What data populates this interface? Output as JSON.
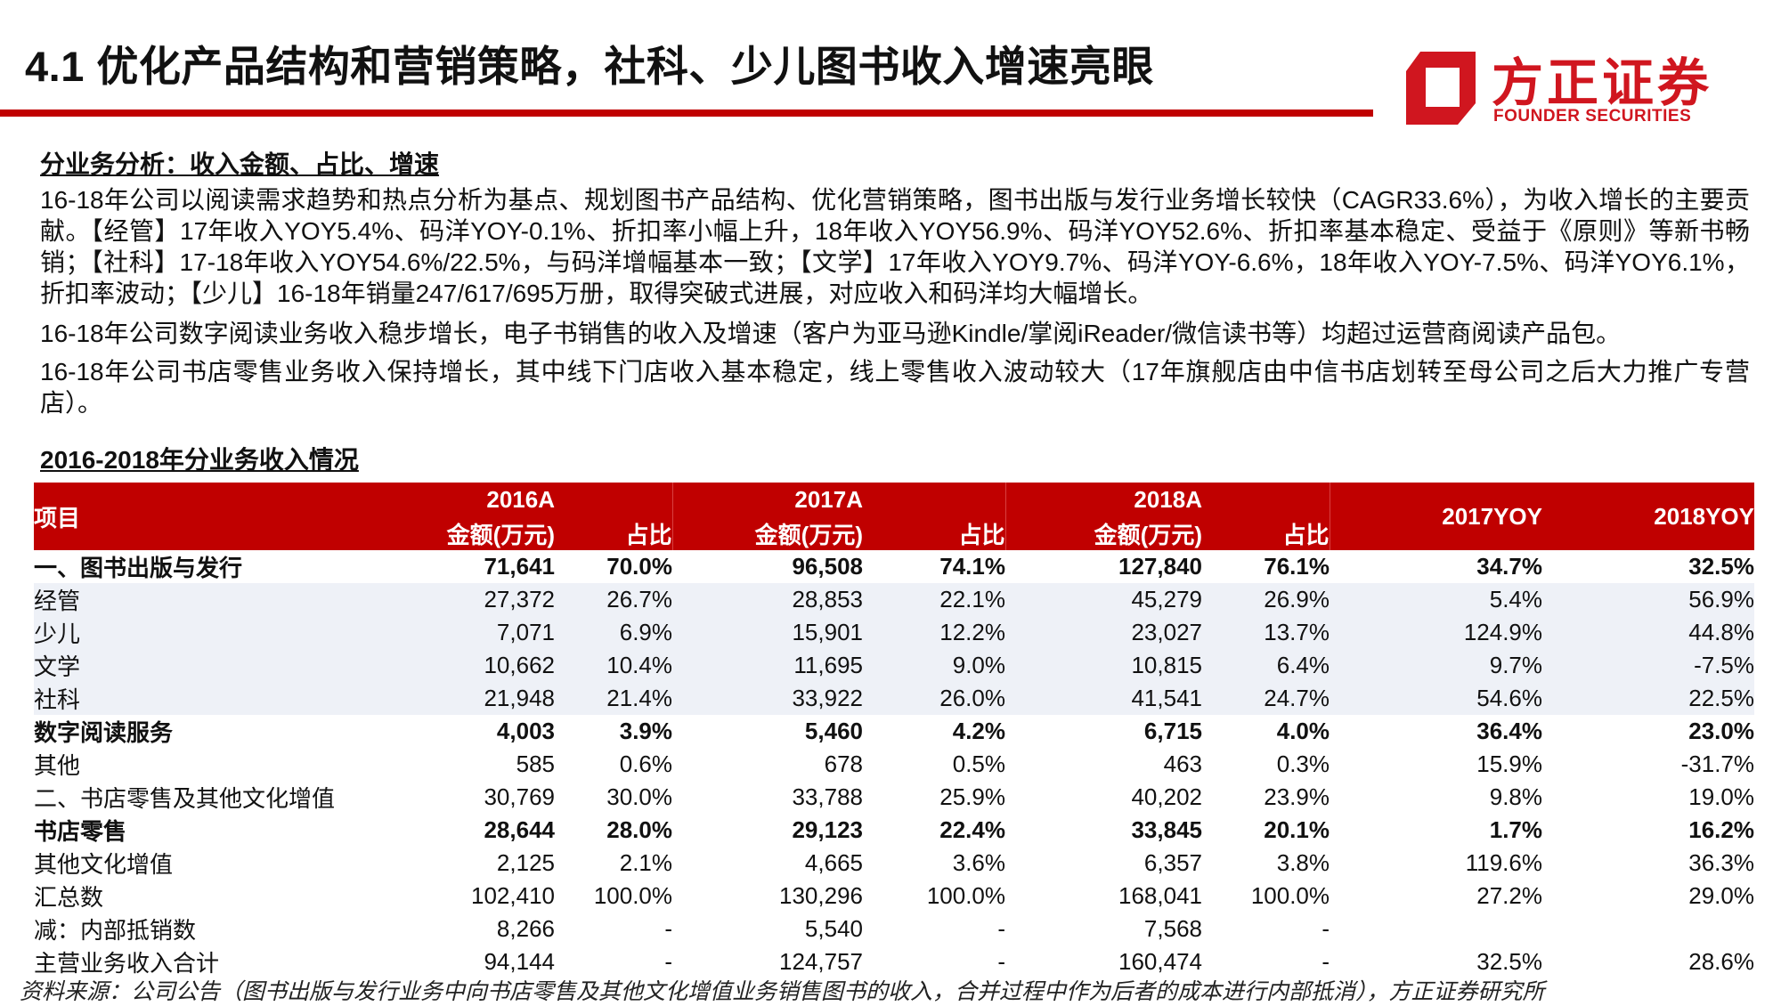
{
  "header": {
    "title": "4.1 优化产品结构和营销策略，社科、少儿图书收入增速亮眼",
    "accent_color": "#c00000"
  },
  "logo": {
    "cn": "方正证券",
    "en": "FOUNDER SECURITIES",
    "color": "#d0161f"
  },
  "section1": {
    "heading": "分业务分析：收入金额、占比、增速",
    "paragraphs": [
      "16-18年公司以阅读需求趋势和热点分析为基点、规划图书产品结构、优化营销策略，图书出版与发行业务增长较快（CAGR33.6%），为收入增长的主要贡献。【经管】17年收入YOY5.4%、码洋YOY-0.1%、折扣率小幅上升，18年收入YOY56.9%、码洋YOY52.6%、折扣率基本稳定、受益于《原则》等新书畅销；【社科】17-18年收入YOY54.6%/22.5%，与码洋增幅基本一致；【文学】17年收入YOY9.7%、码洋YOY-6.6%，18年收入YOY-7.5%、码洋YOY6.1%，折扣率波动；【少儿】16-18年销量247/617/695万册，取得突破式进展，对应收入和码洋均大幅增长。",
      "16-18年公司数字阅读业务收入稳步增长，电子书销售的收入及增速（客户为亚马逊Kindle/掌阅iReader/微信读书等）均超过运营商阅读产品包。",
      "16-18年公司书店零售业务收入保持增长，其中线下门店收入基本稳定，线上零售收入波动较大（17年旗舰店由中信书店划转至母公司之后大力推广专营店）。"
    ]
  },
  "table": {
    "title": "2016-2018年分业务收入情况",
    "header": {
      "item": "项目",
      "years": [
        "2016A",
        "2017A",
        "2018A"
      ],
      "amount": "金额(万元)",
      "share": "占比",
      "yoy": [
        "2017YOY",
        "2018YOY"
      ]
    },
    "rows": [
      {
        "style": "bold",
        "cells": [
          "一、图书出版与发行",
          "71,641",
          "70.0%",
          "96,508",
          "74.1%",
          "127,840",
          "76.1%",
          "34.7%",
          "32.5%"
        ]
      },
      {
        "style": "shade",
        "cells": [
          "经管",
          "27,372",
          "26.7%",
          "28,853",
          "22.1%",
          "45,279",
          "26.9%",
          "5.4%",
          "56.9%"
        ]
      },
      {
        "style": "shade",
        "cells": [
          "少儿",
          "7,071",
          "6.9%",
          "15,901",
          "12.2%",
          "23,027",
          "13.7%",
          "124.9%",
          "44.8%"
        ]
      },
      {
        "style": "shade",
        "cells": [
          "文学",
          "10,662",
          "10.4%",
          "11,695",
          "9.0%",
          "10,815",
          "6.4%",
          "9.7%",
          "-7.5%"
        ]
      },
      {
        "style": "shade",
        "cells": [
          "社科",
          "21,948",
          "21.4%",
          "33,922",
          "26.0%",
          "41,541",
          "24.7%",
          "54.6%",
          "22.5%"
        ]
      },
      {
        "style": "bold",
        "cells": [
          "数字阅读服务",
          "4,003",
          "3.9%",
          "5,460",
          "4.2%",
          "6,715",
          "4.0%",
          "36.4%",
          "23.0%"
        ]
      },
      {
        "style": "",
        "cells": [
          "其他",
          "585",
          "0.6%",
          "678",
          "0.5%",
          "463",
          "0.3%",
          "15.9%",
          "-31.7%"
        ]
      },
      {
        "style": "",
        "cells": [
          "二、书店零售及其他文化增值",
          "30,769",
          "30.0%",
          "33,788",
          "25.9%",
          "40,202",
          "23.9%",
          "9.8%",
          "19.0%"
        ]
      },
      {
        "style": "bold",
        "cells": [
          "书店零售",
          "28,644",
          "28.0%",
          "29,123",
          "22.4%",
          "33,845",
          "20.1%",
          "1.7%",
          "16.2%"
        ]
      },
      {
        "style": "",
        "cells": [
          "其他文化增值",
          "2,125",
          "2.1%",
          "4,665",
          "3.6%",
          "6,357",
          "3.8%",
          "119.6%",
          "36.3%"
        ]
      },
      {
        "style": "",
        "cells": [
          "汇总数",
          "102,410",
          "100.0%",
          "130,296",
          "100.0%",
          "168,041",
          "100.0%",
          "27.2%",
          "29.0%"
        ]
      },
      {
        "style": "",
        "cells": [
          "减：内部抵销数",
          "8,266",
          "-",
          "5,540",
          "-",
          "7,568",
          "-",
          "",
          ""
        ]
      },
      {
        "style": "",
        "cells": [
          "主营业务收入合计",
          "94,144",
          "-",
          "124,757",
          "-",
          "160,474",
          "-",
          "32.5%",
          "28.6%"
        ]
      }
    ]
  },
  "source": "资料来源：公司公告（图书出版与发行业务中向书店零售及其他文化增值业务销售图书的收入，合并过程中作为后者的成本进行内部抵消），方正证券研究所"
}
